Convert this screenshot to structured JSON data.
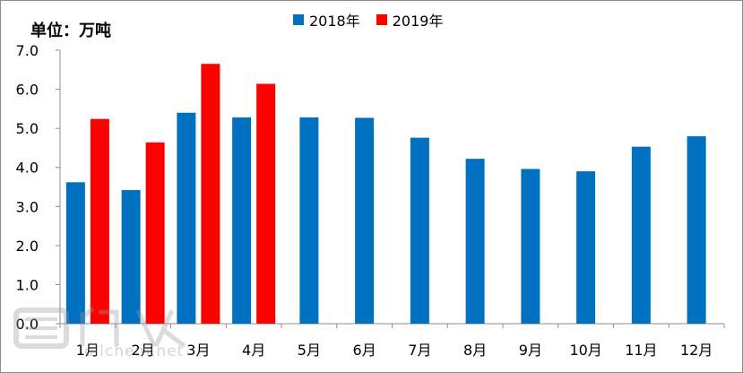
{
  "unit_label": "单位：万吨",
  "watermark": {
    "site": "oilchem.net"
  },
  "chart_data": {
    "type": "bar",
    "categories": [
      "1月",
      "2月",
      "3月",
      "4月",
      "5月",
      "6月",
      "7月",
      "8月",
      "9月",
      "10月",
      "11月",
      "12月"
    ],
    "series": [
      {
        "name": "2018年",
        "color": "#0070C0",
        "values": [
          3.62,
          3.42,
          5.4,
          5.28,
          5.28,
          5.27,
          4.76,
          4.22,
          3.96,
          3.9,
          4.53,
          4.8
        ]
      },
      {
        "name": "2019年",
        "color": "#FF0000",
        "values": [
          5.24,
          4.64,
          6.65,
          6.14,
          null,
          null,
          null,
          null,
          null,
          null,
          null,
          null
        ]
      }
    ],
    "yticks": [
      "0.0",
      "1.0",
      "2.0",
      "3.0",
      "4.0",
      "5.0",
      "6.0",
      "7.0"
    ],
    "ylim": [
      0,
      7
    ],
    "legend_position": "top-center",
    "grid": false
  }
}
